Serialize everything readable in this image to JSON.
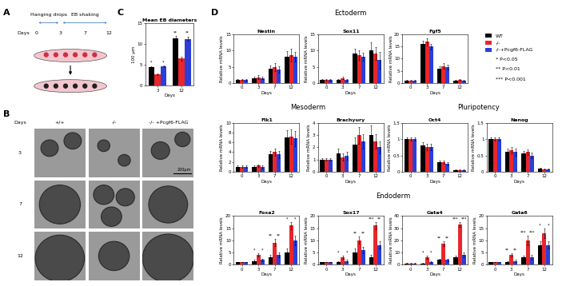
{
  "panel_labels": [
    "A",
    "B",
    "C",
    "D"
  ],
  "schematic": {
    "axis_label": "Days",
    "days": [
      "0",
      "3",
      "7",
      "12"
    ],
    "stages": [
      "Hanging drops",
      "EB shaking"
    ]
  },
  "images": {
    "row_header": "Days",
    "columns": [
      "+/+",
      "-/-",
      "-/- +Pcgf6-FLAG"
    ],
    "rows": [
      "3",
      "7",
      "12"
    ],
    "scale_bar": "200μm"
  },
  "sections": [
    "Ectoderm",
    "Mesoderm",
    "Pluripotency",
    "Endoderm"
  ],
  "significance_legend": [
    "* P<0.05",
    "** P<0.01",
    "*** P<0.001"
  ],
  "chart_data": [
    {
      "type": "bar",
      "title": "Mean EB diameters",
      "xlabel": "Days",
      "ylabel": "100 μm",
      "categories": [
        "3",
        "12"
      ],
      "ylim": [
        0,
        15
      ],
      "yticks": [
        0,
        5,
        10,
        15
      ],
      "series": [
        {
          "name": "WT",
          "color": "#000000",
          "values": [
            4.5,
            11.3
          ],
          "errors": [
            0.2,
            0.5
          ]
        },
        {
          "name": "-/-",
          "color": "#e8262b",
          "values": [
            2.8,
            6.5
          ],
          "errors": [
            0.2,
            0.5
          ]
        },
        {
          "name": "-/-+Pcgf6-FLAG",
          "color": "#2a3fd8",
          "values": [
            4.7,
            11.2
          ],
          "errors": [
            0.2,
            0.5
          ]
        }
      ],
      "significance": [
        [
          "*",
          "*"
        ],
        [
          "**",
          "**"
        ]
      ]
    },
    {
      "type": "bar",
      "title": "Nestin",
      "xlabel": "Days",
      "ylabel": "Relative mRNA levels",
      "categories": [
        "0",
        "3",
        "7",
        "12"
      ],
      "ylim": [
        0,
        15
      ],
      "yticks": [
        0,
        5,
        10,
        15
      ],
      "series": [
        {
          "name": "WT",
          "color": "#000000",
          "values": [
            1,
            1.5,
            4.5,
            8
          ],
          "errors": [
            0.2,
            0.4,
            1.0,
            1.8
          ]
        },
        {
          "name": "-/-",
          "color": "#e8262b",
          "values": [
            1,
            1.8,
            4.8,
            8.5
          ],
          "errors": [
            0.2,
            0.5,
            1.2,
            2.0
          ]
        },
        {
          "name": "-/-+Pcgf6-FLAG",
          "color": "#2a3fd8",
          "values": [
            1,
            1.5,
            4.2,
            8
          ],
          "errors": [
            0.2,
            0.4,
            1.0,
            1.5
          ]
        }
      ]
    },
    {
      "type": "bar",
      "title": "Sox11",
      "xlabel": "Days",
      "ylabel": "Relative mRNA levels",
      "categories": [
        "0",
        "3",
        "7",
        "12"
      ],
      "ylim": [
        0,
        15
      ],
      "yticks": [
        0,
        5,
        10,
        15
      ],
      "series": [
        {
          "name": "WT",
          "color": "#000000",
          "values": [
            1,
            1,
            9,
            10
          ],
          "errors": [
            0.2,
            0.3,
            1.5,
            2.5
          ]
        },
        {
          "name": "-/-",
          "color": "#e8262b",
          "values": [
            1,
            1.5,
            8.5,
            9
          ],
          "errors": [
            0.2,
            0.4,
            1.5,
            2.0
          ]
        },
        {
          "name": "-/-+Pcgf6-FLAG",
          "color": "#2a3fd8",
          "values": [
            1,
            1,
            8,
            7
          ],
          "errors": [
            0.2,
            0.3,
            1.2,
            2.5
          ]
        }
      ]
    },
    {
      "type": "bar",
      "title": "Fgf5",
      "xlabel": "Days",
      "ylabel": "Relative mRNA levels",
      "categories": [
        "0",
        "3",
        "7",
        "12"
      ],
      "ylim": [
        0,
        20
      ],
      "yticks": [
        0,
        5,
        10,
        15,
        20
      ],
      "legend": "upper left",
      "series": [
        {
          "name": "WT",
          "color": "#000000",
          "values": [
            1,
            16,
            6,
            1
          ],
          "errors": [
            0.2,
            1.5,
            1.0,
            0.3
          ]
        },
        {
          "name": "-/-",
          "color": "#e8262b",
          "values": [
            1,
            17,
            7,
            1.2
          ],
          "errors": [
            0.2,
            1.5,
            1.2,
            0.3
          ]
        },
        {
          "name": "-/-+Pcgf6-FLAG",
          "color": "#2a3fd8",
          "values": [
            1,
            15,
            6.5,
            1
          ],
          "errors": [
            0.2,
            1.2,
            1.0,
            0.3
          ]
        }
      ]
    },
    {
      "type": "bar",
      "title": "Flk1",
      "xlabel": "Days",
      "ylabel": "Relative mRNA levels",
      "categories": [
        "0",
        "3",
        "7",
        "12"
      ],
      "ylim": [
        0,
        10
      ],
      "yticks": [
        0,
        2,
        4,
        6,
        8,
        10
      ],
      "series": [
        {
          "name": "WT",
          "color": "#000000",
          "values": [
            1,
            1,
            3.5,
            7
          ],
          "errors": [
            0.2,
            0.3,
            0.8,
            1.5
          ]
        },
        {
          "name": "-/-",
          "color": "#e8262b",
          "values": [
            1,
            1.2,
            4,
            7.2
          ],
          "errors": [
            0.2,
            0.3,
            0.8,
            1.5
          ]
        },
        {
          "name": "-/-+Pcgf6-FLAG",
          "color": "#2a3fd8",
          "values": [
            1,
            1,
            3.5,
            6.8
          ],
          "errors": [
            0.2,
            0.3,
            0.8,
            1.5
          ]
        }
      ]
    },
    {
      "type": "bar",
      "title": "Brachyury",
      "xlabel": "Days",
      "ylabel": "Relative mRNA levels",
      "categories": [
        "0",
        "3",
        "7",
        "12"
      ],
      "ylim": [
        0,
        4
      ],
      "yticks": [
        0,
        1,
        2,
        3,
        4
      ],
      "series": [
        {
          "name": "WT",
          "color": "#000000",
          "values": [
            1,
            1.5,
            2.2,
            3
          ],
          "errors": [
            0.1,
            0.4,
            0.6,
            0.8
          ]
        },
        {
          "name": "-/-",
          "color": "#e8262b",
          "values": [
            1,
            1.2,
            3,
            2.5
          ],
          "errors": [
            0.1,
            0.3,
            0.7,
            0.6
          ]
        },
        {
          "name": "-/-+Pcgf6-FLAG",
          "color": "#2a3fd8",
          "values": [
            1,
            1.3,
            2.5,
            2
          ],
          "errors": [
            0.1,
            0.3,
            0.6,
            0.5
          ]
        }
      ]
    },
    {
      "type": "bar",
      "title": "Oct4",
      "xlabel": "Days",
      "ylabel": "Relative mRNA levels",
      "categories": [
        "0",
        "3",
        "7",
        "12"
      ],
      "ylim": [
        0,
        1.5
      ],
      "yticks": [
        0,
        0.5,
        1,
        1.5
      ],
      "series": [
        {
          "name": "WT",
          "color": "#000000",
          "values": [
            1,
            0.8,
            0.3,
            0.05
          ],
          "errors": [
            0.05,
            0.1,
            0.05,
            0.02
          ]
        },
        {
          "name": "-/-",
          "color": "#e8262b",
          "values": [
            1,
            0.75,
            0.3,
            0.04
          ],
          "errors": [
            0.05,
            0.1,
            0.05,
            0.02
          ]
        },
        {
          "name": "-/-+Pcgf6-FLAG",
          "color": "#2a3fd8",
          "values": [
            1,
            0.75,
            0.25,
            0.05
          ],
          "errors": [
            0.05,
            0.1,
            0.05,
            0.02
          ]
        }
      ]
    },
    {
      "type": "bar",
      "title": "Nanog",
      "xlabel": "Days",
      "ylabel": "Relative mRNA levels",
      "categories": [
        "0",
        "3",
        "7",
        "12"
      ],
      "ylim": [
        0,
        1.5
      ],
      "yticks": [
        0,
        0.5,
        1,
        1.5
      ],
      "series": [
        {
          "name": "WT",
          "color": "#000000",
          "values": [
            1,
            0.6,
            0.55,
            0.1
          ],
          "errors": [
            0.05,
            0.1,
            0.08,
            0.02
          ]
        },
        {
          "name": "-/-",
          "color": "#e8262b",
          "values": [
            1,
            0.65,
            0.6,
            0.08
          ],
          "errors": [
            0.05,
            0.1,
            0.08,
            0.02
          ]
        },
        {
          "name": "-/-+Pcgf6-FLAG",
          "color": "#2a3fd8",
          "values": [
            1,
            0.6,
            0.5,
            0.08
          ],
          "errors": [
            0.05,
            0.1,
            0.08,
            0.02
          ]
        }
      ]
    },
    {
      "type": "bar",
      "title": "Foxa2",
      "xlabel": "Days",
      "ylabel": "Relative mRNA levels",
      "categories": [
        "0",
        "3",
        "7",
        "12"
      ],
      "ylim": [
        0,
        20
      ],
      "yticks": [
        0,
        5,
        10,
        15,
        20
      ],
      "series": [
        {
          "name": "WT",
          "color": "#000000",
          "values": [
            1,
            1.5,
            3,
            5
          ],
          "errors": [
            0.1,
            0.5,
            1,
            1.5
          ]
        },
        {
          "name": "-/-",
          "color": "#e8262b",
          "values": [
            1,
            4,
            9,
            16
          ],
          "errors": [
            0.1,
            0.8,
            1.5,
            1.5
          ]
        },
        {
          "name": "-/-+Pcgf6-FLAG",
          "color": "#2a3fd8",
          "values": [
            1,
            2,
            4,
            10
          ],
          "errors": [
            0.1,
            0.5,
            1,
            2
          ]
        }
      ],
      "significance": [
        [],
        [
          "*",
          "*"
        ],
        [
          "**",
          "**"
        ],
        [
          "*",
          "*"
        ]
      ]
    },
    {
      "type": "bar",
      "title": "Sox17",
      "xlabel": "Days",
      "ylabel": "Relative mRNA levels",
      "categories": [
        "0",
        "3",
        "7",
        "12"
      ],
      "ylim": [
        0,
        20
      ],
      "yticks": [
        0,
        5,
        10,
        15,
        20
      ],
      "series": [
        {
          "name": "WT",
          "color": "#000000",
          "values": [
            1,
            1,
            5,
            3
          ],
          "errors": [
            0.1,
            0.3,
            1.5,
            1
          ]
        },
        {
          "name": "-/-",
          "color": "#e8262b",
          "values": [
            1,
            3,
            10,
            16
          ],
          "errors": [
            0.1,
            0.6,
            1.5,
            1.5
          ]
        },
        {
          "name": "-/-+Pcgf6-FLAG",
          "color": "#2a3fd8",
          "values": [
            1,
            1.5,
            6,
            8
          ],
          "errors": [
            0.1,
            0.4,
            1.2,
            1.5
          ]
        }
      ],
      "significance": [
        [],
        [
          "*",
          "*"
        ],
        [
          "**",
          "**"
        ],
        [
          "***",
          "**"
        ]
      ]
    },
    {
      "type": "bar",
      "title": "Gata4",
      "xlabel": "Days",
      "ylabel": "Relative mRNA levels",
      "categories": [
        "0",
        "3",
        "7",
        "12"
      ],
      "ylim": [
        0,
        40
      ],
      "yticks": [
        0,
        10,
        20,
        30,
        40
      ],
      "series": [
        {
          "name": "WT",
          "color": "#000000",
          "values": [
            1,
            1,
            4,
            6
          ],
          "errors": [
            0.1,
            0.3,
            1,
            1.5
          ]
        },
        {
          "name": "-/-",
          "color": "#e8262b",
          "values": [
            1,
            6,
            17,
            33
          ],
          "errors": [
            0.2,
            1.5,
            2,
            2
          ]
        },
        {
          "name": "-/-+Pcgf6-FLAG",
          "color": "#2a3fd8",
          "values": [
            1,
            2,
            4,
            8
          ],
          "errors": [
            0.1,
            0.5,
            1,
            2
          ]
        }
      ],
      "significance": [
        [],
        [
          "*",
          "*"
        ],
        [
          "**",
          "**"
        ],
        [
          "***",
          "***"
        ]
      ]
    },
    {
      "type": "bar",
      "title": "Gata6",
      "xlabel": "Days",
      "ylabel": "Relative mRNA levels",
      "categories": [
        "0",
        "3",
        "7",
        "12"
      ],
      "ylim": [
        0,
        20
      ],
      "yticks": [
        0,
        5,
        10,
        15,
        20
      ],
      "series": [
        {
          "name": "WT",
          "color": "#000000",
          "values": [
            1,
            1,
            3,
            8
          ],
          "errors": [
            0.1,
            0.3,
            0.8,
            1.5
          ]
        },
        {
          "name": "-/-",
          "color": "#e8262b",
          "values": [
            1,
            4,
            10,
            13
          ],
          "errors": [
            0.1,
            0.8,
            2,
            2
          ]
        },
        {
          "name": "-/-+Pcgf6-FLAG",
          "color": "#2a3fd8",
          "values": [
            1,
            1.5,
            3,
            8
          ],
          "errors": [
            0.1,
            0.4,
            1,
            1.5
          ]
        }
      ],
      "significance": [
        [],
        [
          "**",
          "**"
        ],
        [
          "***",
          "***"
        ],
        [
          "*",
          "*"
        ]
      ]
    }
  ]
}
